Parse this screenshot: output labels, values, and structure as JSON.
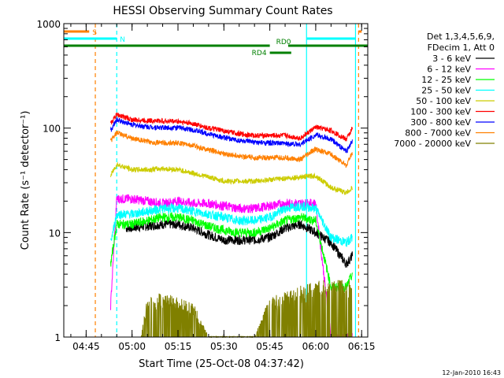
{
  "chart_data": {
    "type": "line",
    "title": "HESSI Observing Summary Count Rates",
    "xlabel": "Start Time (25-Oct-08 04:37:42)",
    "ylabel": "Count Rate (s⁻¹ detector⁻¹)",
    "y_scale": "log",
    "ylim": [
      1,
      1000
    ],
    "xlim": [
      "04:37:42",
      "06:17:00"
    ],
    "x_ticks": [
      "04:45",
      "05:00",
      "05:15",
      "05:30",
      "05:45",
      "06:00",
      "06:15"
    ],
    "y_ticks": [
      "1",
      "10",
      "100",
      "1000"
    ],
    "grid": false,
    "legend_position": "right",
    "legend_header": [
      "Det 1,3,4,5,6,9,",
      "FDecim 1, Att 0"
    ],
    "footer_date": "12-Jan-2010 16:43",
    "series": [
      {
        "name": "3 - 6 keV",
        "color": "#000000",
        "x": [
          "04:58",
          "05:05",
          "05:10",
          "05:15",
          "05:20",
          "05:25",
          "05:30",
          "05:35",
          "05:40",
          "05:45",
          "05:50",
          "05:55",
          "06:00",
          "06:05",
          "06:10",
          "06:12"
        ],
        "values": [
          11,
          11.5,
          12,
          12,
          11,
          9.5,
          8.5,
          8.5,
          8.5,
          9,
          11,
          12,
          10,
          8,
          5,
          6
        ]
      },
      {
        "name": "6 - 12 keV",
        "color": "#ff00ff",
        "x": [
          "04:53",
          "04:55",
          "05:00",
          "05:05",
          "05:10",
          "05:15",
          "05:20",
          "05:25",
          "05:30",
          "05:35",
          "05:40",
          "05:45",
          "05:50",
          "05:55",
          "06:00",
          "06:05",
          "06:10",
          "06:12"
        ],
        "values": [
          2,
          21,
          21,
          20,
          19,
          20,
          19,
          19,
          18,
          17,
          17,
          18,
          19,
          19,
          19,
          1,
          1,
          1
        ]
      },
      {
        "name": "12 - 25 keV",
        "color": "#00ff00",
        "x": [
          "04:53",
          "04:55",
          "05:00",
          "05:05",
          "05:10",
          "05:15",
          "05:20",
          "05:25",
          "05:30",
          "05:35",
          "05:40",
          "05:45",
          "05:50",
          "05:55",
          "06:00",
          "06:05",
          "06:10",
          "06:12"
        ],
        "values": [
          5,
          12,
          12,
          13,
          14,
          14,
          13,
          11.5,
          10.5,
          10,
          10,
          11,
          13,
          14,
          13,
          3,
          3,
          4
        ]
      },
      {
        "name": "25 - 50 keV",
        "color": "#00ffff",
        "x": [
          "04:53",
          "04:55",
          "05:00",
          "05:05",
          "05:10",
          "05:15",
          "05:20",
          "05:25",
          "05:30",
          "05:35",
          "05:40",
          "05:45",
          "05:50",
          "05:55",
          "06:00",
          "06:05",
          "06:10",
          "06:12"
        ],
        "values": [
          8,
          15,
          15,
          16,
          17,
          17,
          16,
          15,
          14,
          13,
          13,
          14,
          17,
          18,
          17,
          9,
          8,
          9
        ]
      },
      {
        "name": "50 - 100 keV",
        "color": "#cccc00",
        "x": [
          "04:53",
          "04:55",
          "05:00",
          "05:05",
          "05:10",
          "05:15",
          "05:20",
          "05:25",
          "05:30",
          "05:35",
          "05:40",
          "05:45",
          "05:50",
          "05:55",
          "06:00",
          "06:05",
          "06:10",
          "06:12"
        ],
        "values": [
          35,
          45,
          40,
          40,
          41,
          40,
          37,
          34,
          31,
          31,
          31,
          32,
          33,
          34,
          35,
          27,
          24,
          27
        ]
      },
      {
        "name": "100 - 300 keV",
        "color": "#ff0000",
        "x": [
          "04:53",
          "04:55",
          "05:00",
          "05:05",
          "05:10",
          "05:15",
          "05:20",
          "05:25",
          "05:30",
          "05:35",
          "05:40",
          "05:45",
          "05:50",
          "05:55",
          "06:00",
          "06:05",
          "06:10",
          "06:12"
        ],
        "values": [
          110,
          135,
          120,
          118,
          117,
          116,
          110,
          100,
          94,
          88,
          85,
          85,
          85,
          80,
          102,
          95,
          78,
          100
        ]
      },
      {
        "name": "300 - 800 keV",
        "color": "#0000ff",
        "x": [
          "04:53",
          "04:55",
          "05:00",
          "05:05",
          "05:10",
          "05:15",
          "05:20",
          "05:25",
          "05:30",
          "05:35",
          "05:40",
          "05:45",
          "05:50",
          "05:55",
          "06:00",
          "06:05",
          "06:10",
          "06:12"
        ],
        "values": [
          95,
          120,
          108,
          103,
          101,
          101,
          96,
          88,
          81,
          76,
          73,
          72,
          71,
          70,
          86,
          78,
          60,
          75
        ]
      },
      {
        "name": "800 - 7000 keV",
        "color": "#ff8000",
        "x": [
          "04:53",
          "04:55",
          "05:00",
          "05:05",
          "05:10",
          "05:15",
          "05:20",
          "05:25",
          "05:30",
          "05:35",
          "05:40",
          "05:45",
          "05:50",
          "05:55",
          "06:00",
          "06:05",
          "06:10",
          "06:12"
        ],
        "values": [
          75,
          90,
          80,
          74,
          72,
          72,
          68,
          62,
          57,
          54,
          52,
          52,
          52,
          50,
          63,
          56,
          44,
          58
        ]
      },
      {
        "name": "7000 - 20000 keV",
        "color": "#808000",
        "x": [
          "05:03",
          "05:05",
          "05:10",
          "05:15",
          "05:20",
          "05:25",
          "05:30",
          "05:35",
          "05:40",
          "05:45",
          "05:50",
          "05:55",
          "06:00",
          "06:05",
          "06:10",
          "06:12"
        ],
        "values": [
          1,
          2,
          2.2,
          2,
          1.8,
          1,
          1,
          1,
          1,
          2,
          2.2,
          2.5,
          2.8,
          2.8,
          2.8,
          3
        ]
      }
    ],
    "vertical_markers": [
      {
        "time": "04:48",
        "color": "#ff8000",
        "style": "dashed"
      },
      {
        "time": "04:55",
        "color": "#00ffff",
        "style": "dashed"
      },
      {
        "time": "05:57",
        "color": "#00ffff",
        "style": "solid"
      },
      {
        "time": "06:13",
        "color": "#00ffff",
        "style": "solid"
      },
      {
        "time": "06:14",
        "color": "#ff8000",
        "style": "dashed"
      }
    ],
    "flag_bars": [
      {
        "label": "S",
        "color": "#ff8000",
        "segments": [
          [
            "04:37:42",
            "04:46"
          ],
          [
            "06:14",
            "06:15"
          ]
        ],
        "level": 0
      },
      {
        "label": "N",
        "color": "#00ffff",
        "segments": [
          [
            "04:37:42",
            "04:55"
          ],
          [
            "05:57",
            "06:13"
          ]
        ],
        "level": 1
      },
      {
        "label": "RD0",
        "color": "#008000",
        "segments": [
          [
            "04:37:42",
            "05:45"
          ],
          [
            "05:51",
            "06:17"
          ]
        ],
        "level": 2
      },
      {
        "label": "RD4",
        "color": "#008000",
        "segments": [
          [
            "05:45",
            "05:52"
          ]
        ],
        "level": 3
      }
    ]
  }
}
